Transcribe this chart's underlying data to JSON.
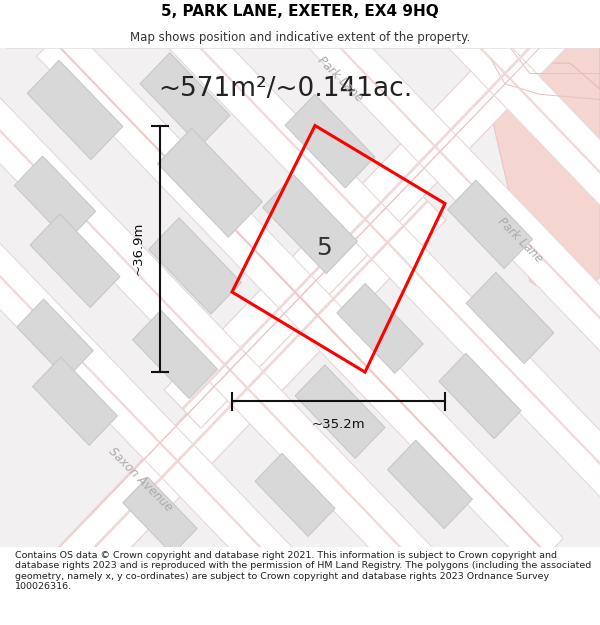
{
  "title": "5, PARK LANE, EXETER, EX4 9HQ",
  "subtitle": "Map shows position and indicative extent of the property.",
  "area_label": "~571m²/~0.141ac.",
  "property_number": "5",
  "dim_width_label": "~35.2m",
  "dim_height_label": "~36.9m",
  "street1_top": "Park Lane",
  "street1_right": "Park Lane",
  "street2": "Saxon Avenue",
  "footer": "Contains OS data © Crown copyright and database right 2021. This information is subject to Crown copyright and database rights 2023 and is reproduced with the permission of HM Land Registry. The polygons (including the associated geometry, namely x, y co-ordinates) are subject to Crown copyright and database rights 2023 Ordnance Survey 100026316.",
  "map_bg": "#f2f0f0",
  "road_fill": "#ffffff",
  "road_edge": "#e8d8d8",
  "road_center_line": "#f0d8d8",
  "property_color": "#ff0000",
  "building_fill": "#d8d8d8",
  "building_edge": "#c8c8c8",
  "pink_fill": "#f5d5d0",
  "pink_edge": "#e8c8c4",
  "dim_color": "#111111",
  "text_color": "#222222",
  "street_color": "#aaaaaa",
  "title_color": "#000000",
  "footer_color": "#222222"
}
